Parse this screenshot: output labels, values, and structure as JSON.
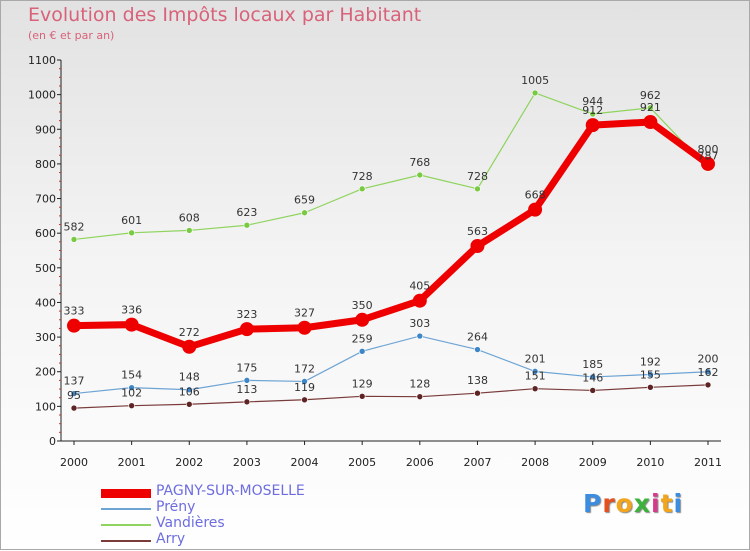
{
  "title": "Evolution des Impôts locaux par Habitant",
  "subtitle": "(en € et par an)",
  "logo": {
    "letters": [
      "P",
      "r",
      "o",
      "x",
      "i",
      "t",
      "i"
    ],
    "colors": [
      "#3c8de0",
      "#e5501f",
      "#f3a51c",
      "#3cb23c",
      "#d63b8a",
      "#f3a51c",
      "#3c8de0"
    ]
  },
  "chart_data": {
    "type": "line",
    "x": [
      "2000",
      "2001",
      "2002",
      "2003",
      "2004",
      "2005",
      "2006",
      "2007",
      "2008",
      "2009",
      "2010",
      "2011"
    ],
    "ylim": [
      0,
      1100
    ],
    "yticks": [
      0,
      100,
      200,
      300,
      400,
      500,
      600,
      700,
      800,
      900,
      1000,
      1100
    ],
    "grid": false,
    "legend_position": "bottom-left",
    "series": [
      {
        "name": "Vandières",
        "color": "#8fd45e",
        "point_color": "#7ac943",
        "width": 1.2,
        "radius": 3,
        "values": [
          582,
          601,
          608,
          623,
          659,
          728,
          768,
          728,
          1005,
          944,
          962,
          787
        ],
        "labels": [
          "582",
          "601",
          "608",
          "623",
          "659",
          "728",
          "768",
          "728",
          "1005",
          "944",
          "962",
          "787"
        ]
      },
      {
        "name": "Prény",
        "color": "#6ea4d4",
        "point_color": "#3f86c7",
        "width": 1.2,
        "radius": 3,
        "values": [
          137,
          154,
          148,
          175,
          172,
          259,
          303,
          264,
          201,
          185,
          192,
          200
        ],
        "labels": [
          "137",
          "154",
          "148",
          "175",
          "172",
          "259",
          "303",
          "264",
          "201",
          "185",
          "192",
          "200"
        ]
      },
      {
        "name": "Arry",
        "color": "#7a3b3b",
        "point_color": "#5e2424",
        "width": 1.2,
        "radius": 3,
        "values": [
          95,
          102,
          106,
          113,
          119,
          129,
          128,
          138,
          151,
          146,
          155,
          162
        ],
        "labels": [
          "95",
          "102",
          "106",
          "113",
          "119",
          "129",
          "128",
          "138",
          "151",
          "146",
          "155",
          "162"
        ]
      },
      {
        "name": "PAGNY-SUR-MOSELLE",
        "color": "#ee0000",
        "point_color": "#ee0000",
        "width": 7,
        "radius": 7,
        "values": [
          333,
          336,
          272,
          323,
          327,
          350,
          405,
          563,
          668,
          912,
          921,
          800
        ],
        "labels": [
          "333",
          "336",
          "272",
          "323",
          "327",
          "350",
          "405",
          "563",
          "668",
          "912",
          "921",
          "800"
        ]
      }
    ],
    "legend_order": [
      "PAGNY-SUR-MOSELLE",
      "Prény",
      "Vandières",
      "Arry"
    ]
  }
}
